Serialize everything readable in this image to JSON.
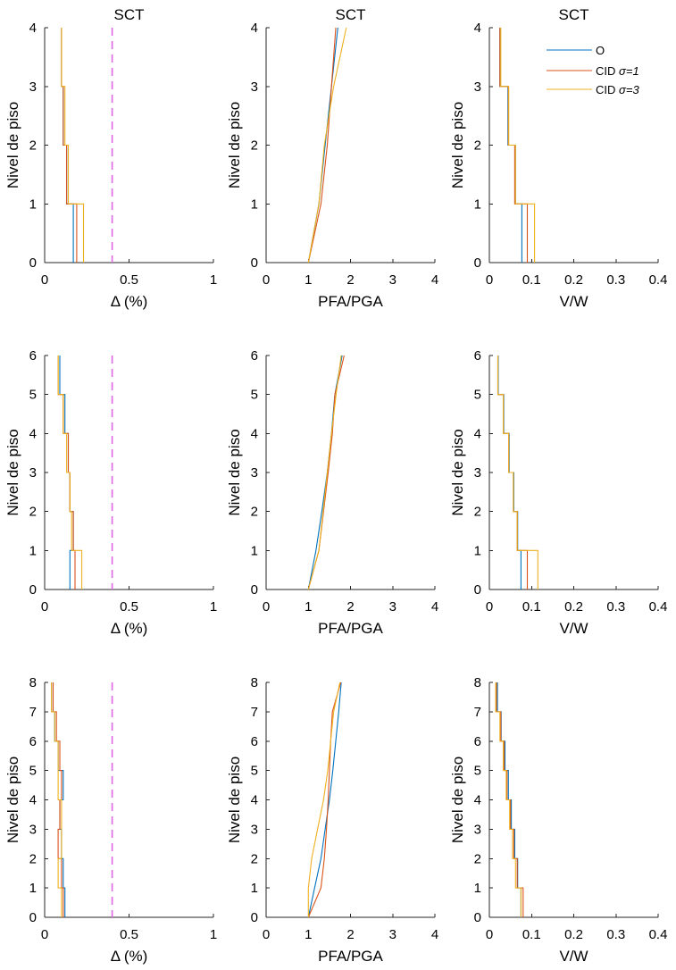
{
  "figure": {
    "series": [
      {
        "name": "O",
        "color": "#0072BD"
      },
      {
        "name": "CID",
        "sigma_label": "σ=1",
        "color": "#D95319"
      },
      {
        "name": "CID",
        "sigma_label": "σ=3",
        "color": "#EDB120"
      }
    ],
    "legend": {
      "location": "top-right",
      "entries": [
        "O",
        "CID σ=1",
        "CID σ=3"
      ]
    },
    "limit_color": "#E066E8"
  },
  "chart_data": [
    {
      "type": "line",
      "row": 1,
      "col": 1,
      "title": "SCT",
      "xlabel": "Δ (%)",
      "ylabel": "Nivel de piso",
      "xlim": [
        0,
        1
      ],
      "ylim": [
        0,
        4
      ],
      "xticks": [
        "0",
        "0.5",
        "1"
      ],
      "yticks": [
        "0",
        "1",
        "2",
        "3",
        "4"
      ],
      "step": true,
      "limit_x": 0.4,
      "series": [
        {
          "name": "O",
          "values": [
            0.17,
            0.13,
            0.11,
            0.1
          ]
        },
        {
          "name": "CID σ=1",
          "values": [
            0.19,
            0.13,
            0.11,
            0.1
          ]
        },
        {
          "name": "CID σ=3",
          "values": [
            0.23,
            0.14,
            0.12,
            0.1
          ]
        }
      ]
    },
    {
      "type": "line",
      "row": 1,
      "col": 2,
      "title": "SCT",
      "xlabel": "PFA/PGA",
      "ylabel": "Nivel de piso",
      "xlim": [
        0,
        4
      ],
      "ylim": [
        0,
        4
      ],
      "xticks": [
        "0",
        "1",
        "2",
        "3",
        "4"
      ],
      "yticks": [
        "0",
        "1",
        "2",
        "3",
        "4"
      ],
      "step": false,
      "series": [
        {
          "name": "O",
          "x": [
            1,
            1.25,
            1.4,
            1.55,
            1.7
          ],
          "y": [
            0,
            1,
            2,
            3,
            4
          ]
        },
        {
          "name": "CID σ=1",
          "x": [
            1,
            1.3,
            1.45,
            1.55,
            1.65
          ],
          "y": [
            0,
            1,
            2,
            3,
            4
          ]
        },
        {
          "name": "CID σ=3",
          "x": [
            1,
            1.25,
            1.38,
            1.6,
            1.9
          ],
          "y": [
            0,
            1,
            2,
            3,
            4
          ]
        }
      ]
    },
    {
      "type": "line",
      "row": 1,
      "col": 3,
      "title": "SCT",
      "xlabel": "V/W",
      "ylabel": "Nivel de piso",
      "xlim": [
        0,
        0.4
      ],
      "ylim": [
        0,
        4
      ],
      "xticks": [
        "0",
        "0.1",
        "0.2",
        "0.3",
        "0.4"
      ],
      "yticks": [
        "0",
        "1",
        "2",
        "3",
        "4"
      ],
      "step": true,
      "legend": true,
      "series": [
        {
          "name": "O",
          "values": [
            0.077,
            0.062,
            0.044,
            0.025
          ]
        },
        {
          "name": "CID σ=1",
          "values": [
            0.09,
            0.06,
            0.045,
            0.025
          ]
        },
        {
          "name": "CID σ=3",
          "values": [
            0.107,
            0.062,
            0.046,
            0.027
          ]
        }
      ]
    },
    {
      "type": "line",
      "row": 2,
      "col": 1,
      "title": "",
      "xlabel": "Δ (%)",
      "ylabel": "Nivel de piso",
      "xlim": [
        0,
        1
      ],
      "ylim": [
        0,
        6
      ],
      "xticks": [
        "0",
        "0.5",
        "1"
      ],
      "yticks": [
        "0",
        "1",
        "2",
        "3",
        "4",
        "5",
        "6"
      ],
      "step": true,
      "limit_x": 0.4,
      "series": [
        {
          "name": "O",
          "values": [
            0.15,
            0.17,
            0.15,
            0.14,
            0.12,
            0.09
          ]
        },
        {
          "name": "CID σ=1",
          "values": [
            0.18,
            0.17,
            0.15,
            0.14,
            0.11,
            0.08
          ]
        },
        {
          "name": "CID σ=3",
          "values": [
            0.22,
            0.16,
            0.15,
            0.13,
            0.11,
            0.08
          ]
        }
      ]
    },
    {
      "type": "line",
      "row": 2,
      "col": 2,
      "title": "",
      "xlabel": "PFA/PGA",
      "ylabel": "Nivel de piso",
      "xlim": [
        0,
        4
      ],
      "ylim": [
        0,
        6
      ],
      "xticks": [
        "0",
        "1",
        "2",
        "3",
        "4"
      ],
      "yticks": [
        "0",
        "1",
        "2",
        "3",
        "4",
        "5",
        "6"
      ],
      "step": false,
      "series": [
        {
          "name": "O",
          "x": [
            1,
            1.18,
            1.32,
            1.45,
            1.55,
            1.63,
            1.8
          ],
          "y": [
            0,
            1,
            2,
            3,
            4,
            5,
            6
          ]
        },
        {
          "name": "CID σ=1",
          "x": [
            1,
            1.25,
            1.36,
            1.47,
            1.57,
            1.63,
            1.85
          ],
          "y": [
            0,
            1,
            2,
            3,
            4,
            5,
            6
          ]
        },
        {
          "name": "CID σ=3",
          "x": [
            1,
            1.25,
            1.35,
            1.45,
            1.55,
            1.66,
            1.78
          ],
          "y": [
            0,
            1,
            2,
            3,
            4,
            5,
            6
          ]
        }
      ]
    },
    {
      "type": "line",
      "row": 2,
      "col": 3,
      "title": "",
      "xlabel": "V/W",
      "ylabel": "Nivel de piso",
      "xlim": [
        0,
        0.4
      ],
      "ylim": [
        0,
        6
      ],
      "xticks": [
        "0",
        "0.1",
        "0.2",
        "0.3",
        "0.4"
      ],
      "yticks": [
        "0",
        "1",
        "2",
        "3",
        "4",
        "5",
        "6"
      ],
      "step": true,
      "series": [
        {
          "name": "O",
          "values": [
            0.075,
            0.067,
            0.058,
            0.047,
            0.034,
            0.021
          ]
        },
        {
          "name": "CID σ=1",
          "values": [
            0.09,
            0.066,
            0.057,
            0.046,
            0.033,
            0.02
          ]
        },
        {
          "name": "CID σ=3",
          "values": [
            0.115,
            0.066,
            0.057,
            0.046,
            0.033,
            0.02
          ]
        }
      ]
    },
    {
      "type": "line",
      "row": 3,
      "col": 1,
      "title": "",
      "xlabel": "Δ (%)",
      "ylabel": "Nivel de piso",
      "xlim": [
        0,
        1
      ],
      "ylim": [
        0,
        8
      ],
      "xticks": [
        "0",
        "0.5",
        "1"
      ],
      "yticks": [
        "0",
        "1",
        "2",
        "3",
        "4",
        "5",
        "6",
        "7",
        "8"
      ],
      "step": true,
      "limit_x": 0.4,
      "series": [
        {
          "name": "O",
          "values": [
            0.12,
            0.11,
            0.1,
            0.09,
            0.11,
            0.08,
            0.06,
            0.04
          ]
        },
        {
          "name": "CID σ=1",
          "values": [
            0.11,
            0.1,
            0.08,
            0.09,
            0.1,
            0.09,
            0.07,
            0.05
          ]
        },
        {
          "name": "CID σ=3",
          "values": [
            0.1,
            0.08,
            0.1,
            0.1,
            0.08,
            0.08,
            0.06,
            0.04
          ]
        }
      ]
    },
    {
      "type": "line",
      "row": 3,
      "col": 2,
      "title": "",
      "xlabel": "PFA/PGA",
      "ylabel": "Nivel de piso",
      "xlim": [
        0,
        4
      ],
      "ylim": [
        0,
        8
      ],
      "xticks": [
        "0",
        "1",
        "2",
        "3",
        "4"
      ],
      "yticks": [
        "0",
        "1",
        "2",
        "3",
        "4",
        "5",
        "6",
        "7",
        "8"
      ],
      "step": false,
      "series": [
        {
          "name": "O",
          "x": [
            1,
            1.15,
            1.3,
            1.4,
            1.5,
            1.58,
            1.65,
            1.72,
            1.78
          ],
          "y": [
            0,
            1,
            2,
            3,
            4,
            5,
            6,
            7,
            8
          ]
        },
        {
          "name": "CID σ=1",
          "x": [
            1,
            1.3,
            1.38,
            1.43,
            1.47,
            1.5,
            1.53,
            1.57,
            1.77
          ],
          "y": [
            0,
            1,
            2,
            3,
            4,
            5,
            6,
            7,
            8
          ]
        },
        {
          "name": "CID σ=3",
          "x": [
            1,
            1,
            1.08,
            1.22,
            1.36,
            1.46,
            1.53,
            1.6,
            1.75
          ],
          "y": [
            0,
            1,
            2,
            3,
            4,
            5,
            6,
            7,
            8
          ]
        }
      ]
    },
    {
      "type": "line",
      "row": 3,
      "col": 3,
      "title": "",
      "xlabel": "V/W",
      "ylabel": "Nivel de piso",
      "xlim": [
        0,
        0.4
      ],
      "ylim": [
        0,
        8
      ],
      "xticks": [
        "0",
        "0.1",
        "0.2",
        "0.3",
        "0.4"
      ],
      "yticks": [
        "0",
        "1",
        "2",
        "3",
        "4",
        "5",
        "6",
        "7",
        "8"
      ],
      "step": true,
      "series": [
        {
          "name": "O",
          "values": [
            0.075,
            0.067,
            0.06,
            0.052,
            0.045,
            0.037,
            0.028,
            0.019
          ]
        },
        {
          "name": "CID σ=1",
          "values": [
            0.08,
            0.066,
            0.058,
            0.05,
            0.042,
            0.035,
            0.027,
            0.017
          ]
        },
        {
          "name": "CID σ=3",
          "values": [
            0.075,
            0.062,
            0.055,
            0.048,
            0.04,
            0.033,
            0.025,
            0.015
          ]
        }
      ]
    }
  ]
}
